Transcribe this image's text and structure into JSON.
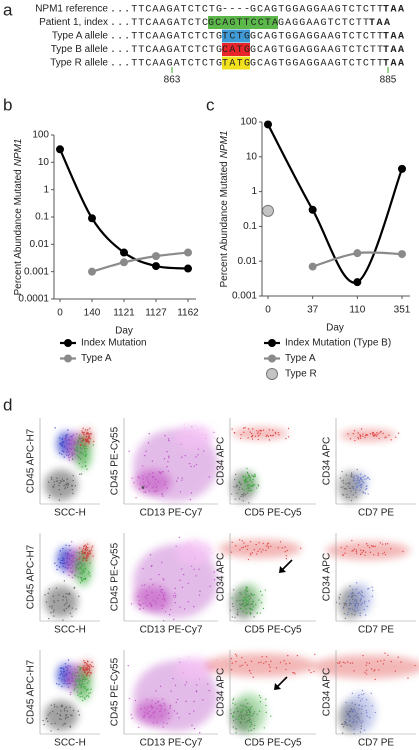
{
  "panel_a": {
    "label": "a",
    "rows": [
      {
        "name": "NPM1 reference",
        "segments": [
          {
            "text": "...TTCAAGATCTCTG"
          },
          {
            "text": "----",
            "color": "#3a9fa6"
          },
          {
            "text": "GCAGTGGAGGAAGTCTCTT"
          },
          {
            "text": "TAA",
            "bold": true
          }
        ]
      },
      {
        "name": "Patient 1, index",
        "segments": [
          {
            "text": "...TTCAAGATCTC"
          },
          {
            "text": "GCAGTTCCTA",
            "highlight": "#5cb84a"
          },
          {
            "text": "GAGGAAGTCTCTT"
          },
          {
            "text": "TAA",
            "bold": true
          }
        ]
      },
      {
        "name": "Type A allele",
        "segments": [
          {
            "text": "...TTCAAGATCTCTG"
          },
          {
            "text": "TCTG",
            "highlight": "#3f9ad6"
          },
          {
            "text": "GCAGTGGAGGAAGTCTCTT"
          },
          {
            "text": "TAA",
            "bold": true
          }
        ]
      },
      {
        "name": "Type B allele",
        "segments": [
          {
            "text": "...TTCAAGATCTCTG"
          },
          {
            "text": "CATG",
            "highlight": "#e8262a"
          },
          {
            "text": "GCAGTGGAGGAAGTCTCTT"
          },
          {
            "text": "TAA",
            "bold": true
          }
        ]
      },
      {
        "name": "Type R allele",
        "segments": [
          {
            "text": "...TTCAAGATCTCTG"
          },
          {
            "text": "TATG",
            "highlight": "#f2e21e"
          },
          {
            "text": "GCAGTGGAGGAAGTCTCTT"
          },
          {
            "text": "TAA",
            "bold": true
          }
        ]
      }
    ],
    "positions": [
      "863",
      "885"
    ]
  },
  "chart_data": [
    {
      "type": "line",
      "panel_label": "b",
      "ylabel": "Percent Abundance Mutated",
      "ylabel_gene": "NPM1",
      "xlabel": "Day",
      "categories": [
        "0",
        "140",
        "1121",
        "1127",
        "1162"
      ],
      "log_y": true,
      "smooth": true,
      "ylim": [
        0.0001,
        100
      ],
      "yticks": [
        100,
        10,
        1,
        0.1,
        0.01,
        0.001,
        0.0001
      ],
      "series": [
        {
          "name": "Index Mutation",
          "color": "#000000",
          "values": [
            30,
            0.09,
            0.005,
            0.0016,
            0.0013
          ]
        },
        {
          "name": "Type A",
          "color": "#8a8a8a",
          "values": [
            null,
            0.001,
            0.0022,
            0.0037,
            0.005
          ]
        }
      ]
    },
    {
      "type": "line",
      "panel_label": "c",
      "ylabel": "Percent Abundance Mutated",
      "ylabel_gene": "NPM1",
      "xlabel": "Day",
      "categories": [
        "0",
        "37",
        "110",
        "351"
      ],
      "log_y": true,
      "smooth": true,
      "ylim": [
        0.001,
        100
      ],
      "yticks": [
        100,
        10,
        1,
        0.1,
        0.01,
        0.001
      ],
      "series": [
        {
          "name": "Index Mutation (Type B)",
          "color": "#000000",
          "values": [
            85,
            0.3,
            0.0025,
            4.5
          ]
        },
        {
          "name": "Type A",
          "color": "#8a8a8a",
          "values": [
            null,
            0.007,
            0.017,
            0.016
          ]
        },
        {
          "name": "Type R",
          "color": "#c4c4c4",
          "values": [
            0.28,
            null,
            null,
            null
          ],
          "marker_size": 5.5
        }
      ]
    }
  ],
  "panel_d": {
    "label": "d",
    "annotation": "*",
    "plots": [
      {
        "xlabel": "SCC-H",
        "ylabel": "CD45 APC-H7"
      },
      {
        "xlabel": "CD13 PE-Cy7",
        "ylabel": "CD45 PE-Cy55"
      },
      {
        "xlabel": "CD5 PE-Cy5",
        "ylabel": "CD34 APC"
      },
      {
        "xlabel": "CD7 PE",
        "ylabel": "CD34 APC"
      },
      {
        "xlabel": "SCC-H",
        "ylabel": "CD45 APC-H7"
      },
      {
        "xlabel": "CD13 PE-Cy7",
        "ylabel": "CD45 PE-Cy55"
      },
      {
        "xlabel": "CD5 PE-Cy5",
        "ylabel": "CD34 APC"
      },
      {
        "xlabel": "CD7 PE",
        "ylabel": "CD34 APC"
      },
      {
        "xlabel": "SCC-H",
        "ylabel": "CD45 APC-H7"
      },
      {
        "xlabel": "CD13 PE-Cy7",
        "ylabel": "CD45 PE-Cy55"
      },
      {
        "xlabel": "CD5 PE-Cy5",
        "ylabel": "CD34 APC"
      },
      {
        "xlabel": "CD7 PE",
        "ylabel": "CD34 APC"
      }
    ]
  }
}
